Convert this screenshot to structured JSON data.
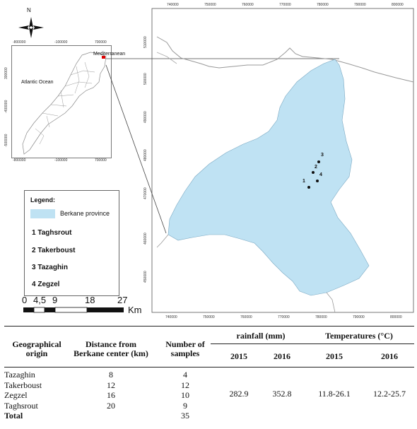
{
  "inset_map": {
    "north_label": "N",
    "top_ticks": [
      "-800000",
      "-100000",
      "700000"
    ],
    "bottom_ticks": [
      "-800000",
      "-100000",
      "700000"
    ],
    "left_ticks": [
      "300000",
      "-400000",
      "-500000"
    ],
    "ocean_label": "Atlantic Ocean",
    "sea_label": "Mediterranean"
  },
  "main_map": {
    "top_ticks": [
      "740000",
      "750000",
      "760000",
      "770000",
      "780000",
      "790000",
      "800000"
    ],
    "bottom_ticks": [
      "740000",
      "750000",
      "760000",
      "770000",
      "780000",
      "790000",
      "800000"
    ],
    "left_ticks": [
      "510000",
      "500000",
      "490000",
      "480000",
      "470000",
      "460000",
      "450000"
    ],
    "sites": [
      {
        "num": "1",
        "name": "Taghsrout"
      },
      {
        "num": "2",
        "name": "Takerboust"
      },
      {
        "num": "3",
        "name": "Tazaghin"
      },
      {
        "num": "4",
        "name": "Zegzel"
      }
    ]
  },
  "legend": {
    "title": "Legend:",
    "province_label": "Berkane province",
    "items": [
      "1 Taghsrout",
      "2 Takerboust",
      "3 Tazaghin",
      "4 Zegzel"
    ],
    "province_color": "#bfe2f3"
  },
  "scale_bar": {
    "labels": [
      "0",
      "4,5",
      "9",
      "18",
      "27"
    ],
    "unit": "Km"
  },
  "table": {
    "headers": {
      "origin": "Geographical origin",
      "distance": "Distance from Berkane center (km)",
      "samples": "Number of samples",
      "rainfall": "rainfall (mm)",
      "temperatures": "Temperatures (°C)",
      "year_a": "2015",
      "year_b": "2016",
      "year_c": "2015",
      "year_d": "2016"
    },
    "rows": [
      {
        "origin": "Tazaghin",
        "distance": "8",
        "samples": "4"
      },
      {
        "origin": "Takerboust",
        "distance": "12",
        "samples": "12"
      },
      {
        "origin": "Zegzel",
        "distance": "16",
        "samples": "10"
      },
      {
        "origin": "Taghsrout",
        "distance": "20",
        "samples": "9"
      }
    ],
    "shared": {
      "rain_2015": "282.9",
      "rain_2016": "352.8",
      "temp_2015": "11.8-26.1",
      "temp_2016": "12.2-25.7"
    },
    "total_label": "Total",
    "total_samples": "35"
  }
}
